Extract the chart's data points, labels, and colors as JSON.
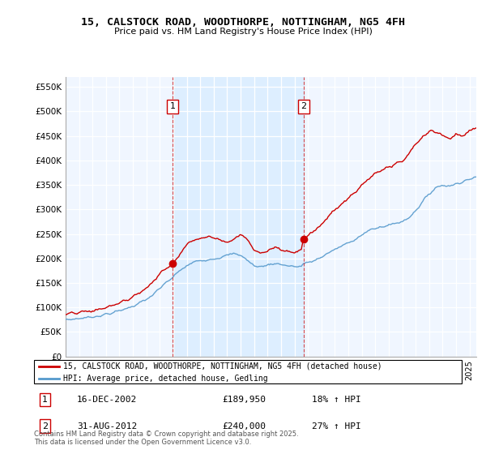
{
  "title": "15, CALSTOCK ROAD, WOODTHORPE, NOTTINGHAM, NG5 4FH",
  "subtitle": "Price paid vs. HM Land Registry's House Price Index (HPI)",
  "ylabel_ticks": [
    "£0",
    "£50K",
    "£100K",
    "£150K",
    "£200K",
    "£250K",
    "£300K",
    "£350K",
    "£400K",
    "£450K",
    "£500K",
    "£550K"
  ],
  "ylim": [
    0,
    570000
  ],
  "ytick_vals": [
    0,
    50000,
    100000,
    150000,
    200000,
    250000,
    300000,
    350000,
    400000,
    450000,
    500000,
    550000
  ],
  "sale1_year": 2002.96,
  "sale1_price": 189950,
  "sale1_label": "1",
  "sale1_date": "16-DEC-2002",
  "sale1_pct": "18% ↑ HPI",
  "sale2_year": 2012.67,
  "sale2_price": 240000,
  "sale2_label": "2",
  "sale2_date": "31-AUG-2012",
  "sale2_pct": "27% ↑ HPI",
  "line_color_house": "#cc0000",
  "line_color_hpi": "#5599cc",
  "shade_color": "#ddeeff",
  "background_color": "#f0f6ff",
  "legend_house": "15, CALSTOCK ROAD, WOODTHORPE, NOTTINGHAM, NG5 4FH (detached house)",
  "legend_hpi": "HPI: Average price, detached house, Gedling",
  "footnote": "Contains HM Land Registry data © Crown copyright and database right 2025.\nThis data is licensed under the Open Government Licence v3.0.",
  "xmin": 1995,
  "xmax": 2025.5,
  "hpi_points": [
    [
      1995.0,
      75000
    ],
    [
      1995.5,
      76000
    ],
    [
      1996.0,
      77500
    ],
    [
      1996.5,
      79000
    ],
    [
      1997.0,
      81000
    ],
    [
      1997.5,
      83000
    ],
    [
      1998.0,
      86000
    ],
    [
      1998.5,
      89000
    ],
    [
      1999.0,
      93000
    ],
    [
      1999.5,
      98000
    ],
    [
      2000.0,
      103000
    ],
    [
      2000.5,
      109000
    ],
    [
      2001.0,
      116000
    ],
    [
      2001.5,
      126000
    ],
    [
      2002.0,
      138000
    ],
    [
      2002.5,
      152000
    ],
    [
      2002.96,
      161000
    ],
    [
      2003.0,
      163000
    ],
    [
      2003.5,
      175000
    ],
    [
      2004.0,
      185000
    ],
    [
      2004.5,
      192000
    ],
    [
      2005.0,
      196000
    ],
    [
      2005.5,
      198000
    ],
    [
      2006.0,
      200000
    ],
    [
      2006.5,
      202000
    ],
    [
      2007.0,
      206000
    ],
    [
      2007.5,
      210000
    ],
    [
      2008.0,
      207000
    ],
    [
      2008.5,
      196000
    ],
    [
      2009.0,
      185000
    ],
    [
      2009.5,
      183000
    ],
    [
      2010.0,
      187000
    ],
    [
      2010.5,
      190000
    ],
    [
      2011.0,
      188000
    ],
    [
      2011.5,
      185000
    ],
    [
      2012.0,
      183000
    ],
    [
      2012.5,
      184000
    ],
    [
      2012.67,
      189000
    ],
    [
      2013.0,
      191000
    ],
    [
      2013.5,
      196000
    ],
    [
      2014.0,
      203000
    ],
    [
      2014.5,
      211000
    ],
    [
      2015.0,
      218000
    ],
    [
      2015.5,
      225000
    ],
    [
      2016.0,
      232000
    ],
    [
      2016.5,
      240000
    ],
    [
      2017.0,
      248000
    ],
    [
      2017.5,
      256000
    ],
    [
      2018.0,
      261000
    ],
    [
      2018.5,
      265000
    ],
    [
      2019.0,
      268000
    ],
    [
      2019.5,
      272000
    ],
    [
      2020.0,
      275000
    ],
    [
      2020.5,
      284000
    ],
    [
      2021.0,
      298000
    ],
    [
      2021.5,
      315000
    ],
    [
      2022.0,
      332000
    ],
    [
      2022.5,
      345000
    ],
    [
      2023.0,
      350000
    ],
    [
      2023.5,
      348000
    ],
    [
      2024.0,
      352000
    ],
    [
      2024.5,
      358000
    ],
    [
      2025.0,
      362000
    ],
    [
      2025.5,
      365000
    ]
  ],
  "house_points": [
    [
      1995.0,
      85000
    ],
    [
      1995.5,
      87000
    ],
    [
      1996.0,
      89000
    ],
    [
      1996.5,
      91000
    ],
    [
      1997.0,
      93000
    ],
    [
      1997.5,
      96000
    ],
    [
      1998.0,
      100000
    ],
    [
      1998.5,
      104000
    ],
    [
      1999.0,
      108000
    ],
    [
      1999.5,
      115000
    ],
    [
      2000.0,
      122000
    ],
    [
      2000.5,
      130000
    ],
    [
      2001.0,
      140000
    ],
    [
      2001.5,
      153000
    ],
    [
      2002.0,
      168000
    ],
    [
      2002.5,
      182000
    ],
    [
      2002.96,
      189950
    ],
    [
      2003.0,
      193000
    ],
    [
      2003.5,
      210000
    ],
    [
      2004.0,
      228000
    ],
    [
      2004.5,
      238000
    ],
    [
      2005.0,
      242000
    ],
    [
      2005.5,
      245000
    ],
    [
      2006.0,
      244000
    ],
    [
      2006.5,
      237000
    ],
    [
      2007.0,
      232000
    ],
    [
      2007.5,
      240000
    ],
    [
      2008.0,
      250000
    ],
    [
      2008.5,
      238000
    ],
    [
      2009.0,
      218000
    ],
    [
      2009.5,
      210000
    ],
    [
      2010.0,
      215000
    ],
    [
      2010.5,
      222000
    ],
    [
      2011.0,
      220000
    ],
    [
      2011.5,
      215000
    ],
    [
      2012.0,
      213000
    ],
    [
      2012.5,
      218000
    ],
    [
      2012.67,
      240000
    ],
    [
      2013.0,
      248000
    ],
    [
      2013.5,
      258000
    ],
    [
      2014.0,
      270000
    ],
    [
      2014.5,
      285000
    ],
    [
      2015.0,
      298000
    ],
    [
      2015.5,
      312000
    ],
    [
      2016.0,
      322000
    ],
    [
      2016.5,
      335000
    ],
    [
      2017.0,
      348000
    ],
    [
      2017.5,
      362000
    ],
    [
      2018.0,
      372000
    ],
    [
      2018.5,
      380000
    ],
    [
      2019.0,
      385000
    ],
    [
      2019.5,
      392000
    ],
    [
      2020.0,
      398000
    ],
    [
      2020.5,
      415000
    ],
    [
      2021.0,
      432000
    ],
    [
      2021.5,
      448000
    ],
    [
      2022.0,
      460000
    ],
    [
      2022.5,
      458000
    ],
    [
      2023.0,
      452000
    ],
    [
      2023.5,
      445000
    ],
    [
      2024.0,
      455000
    ],
    [
      2024.5,
      450000
    ],
    [
      2025.0,
      460000
    ],
    [
      2025.5,
      465000
    ]
  ]
}
